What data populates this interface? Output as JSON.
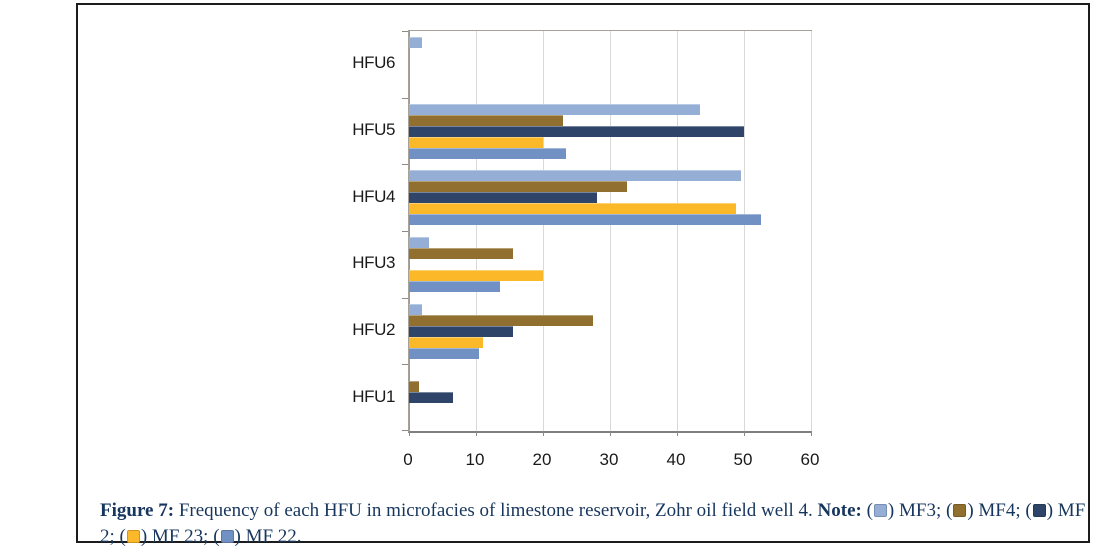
{
  "figure": {
    "caption": {
      "figure_label": "Figure 7:",
      "body": "Frequency of each HFU in microfacies of limestone reservoir, Zohr oil field well 4.",
      "note_label": "Note:",
      "text_color": "#17365d"
    }
  },
  "chart_data": {
    "type": "bar",
    "orientation": "horizontal",
    "title": "",
    "xlabel": "",
    "ylabel": "",
    "categories": [
      "HFU6",
      "HFU5",
      "HFU4",
      "HFU3",
      "HFU2",
      "HFU1"
    ],
    "series": [
      {
        "name": "MF3",
        "color": "#94aed6",
        "values": [
          2,
          43.5,
          49.5,
          3,
          2,
          0
        ]
      },
      {
        "name": "MF4",
        "color": "#906f2f",
        "values": [
          0,
          23,
          32.5,
          15.5,
          27.5,
          1.5
        ]
      },
      {
        "name": "MF 2",
        "color": "#2e4569",
        "values": [
          0,
          50,
          28,
          0,
          15.5,
          6.5
        ]
      },
      {
        "name": "MF 23",
        "color": "#fbb829",
        "values": [
          0,
          20,
          48.8,
          20,
          11,
          0
        ]
      },
      {
        "name": "MF 22",
        "color": "#7191c4",
        "values": [
          0,
          23.5,
          52.5,
          13.5,
          10.5,
          0
        ]
      }
    ],
    "x_ticks": [
      0,
      10,
      20,
      30,
      40,
      50,
      60
    ],
    "xlim": [
      0,
      60
    ],
    "grid": true,
    "legend_position": "caption"
  }
}
